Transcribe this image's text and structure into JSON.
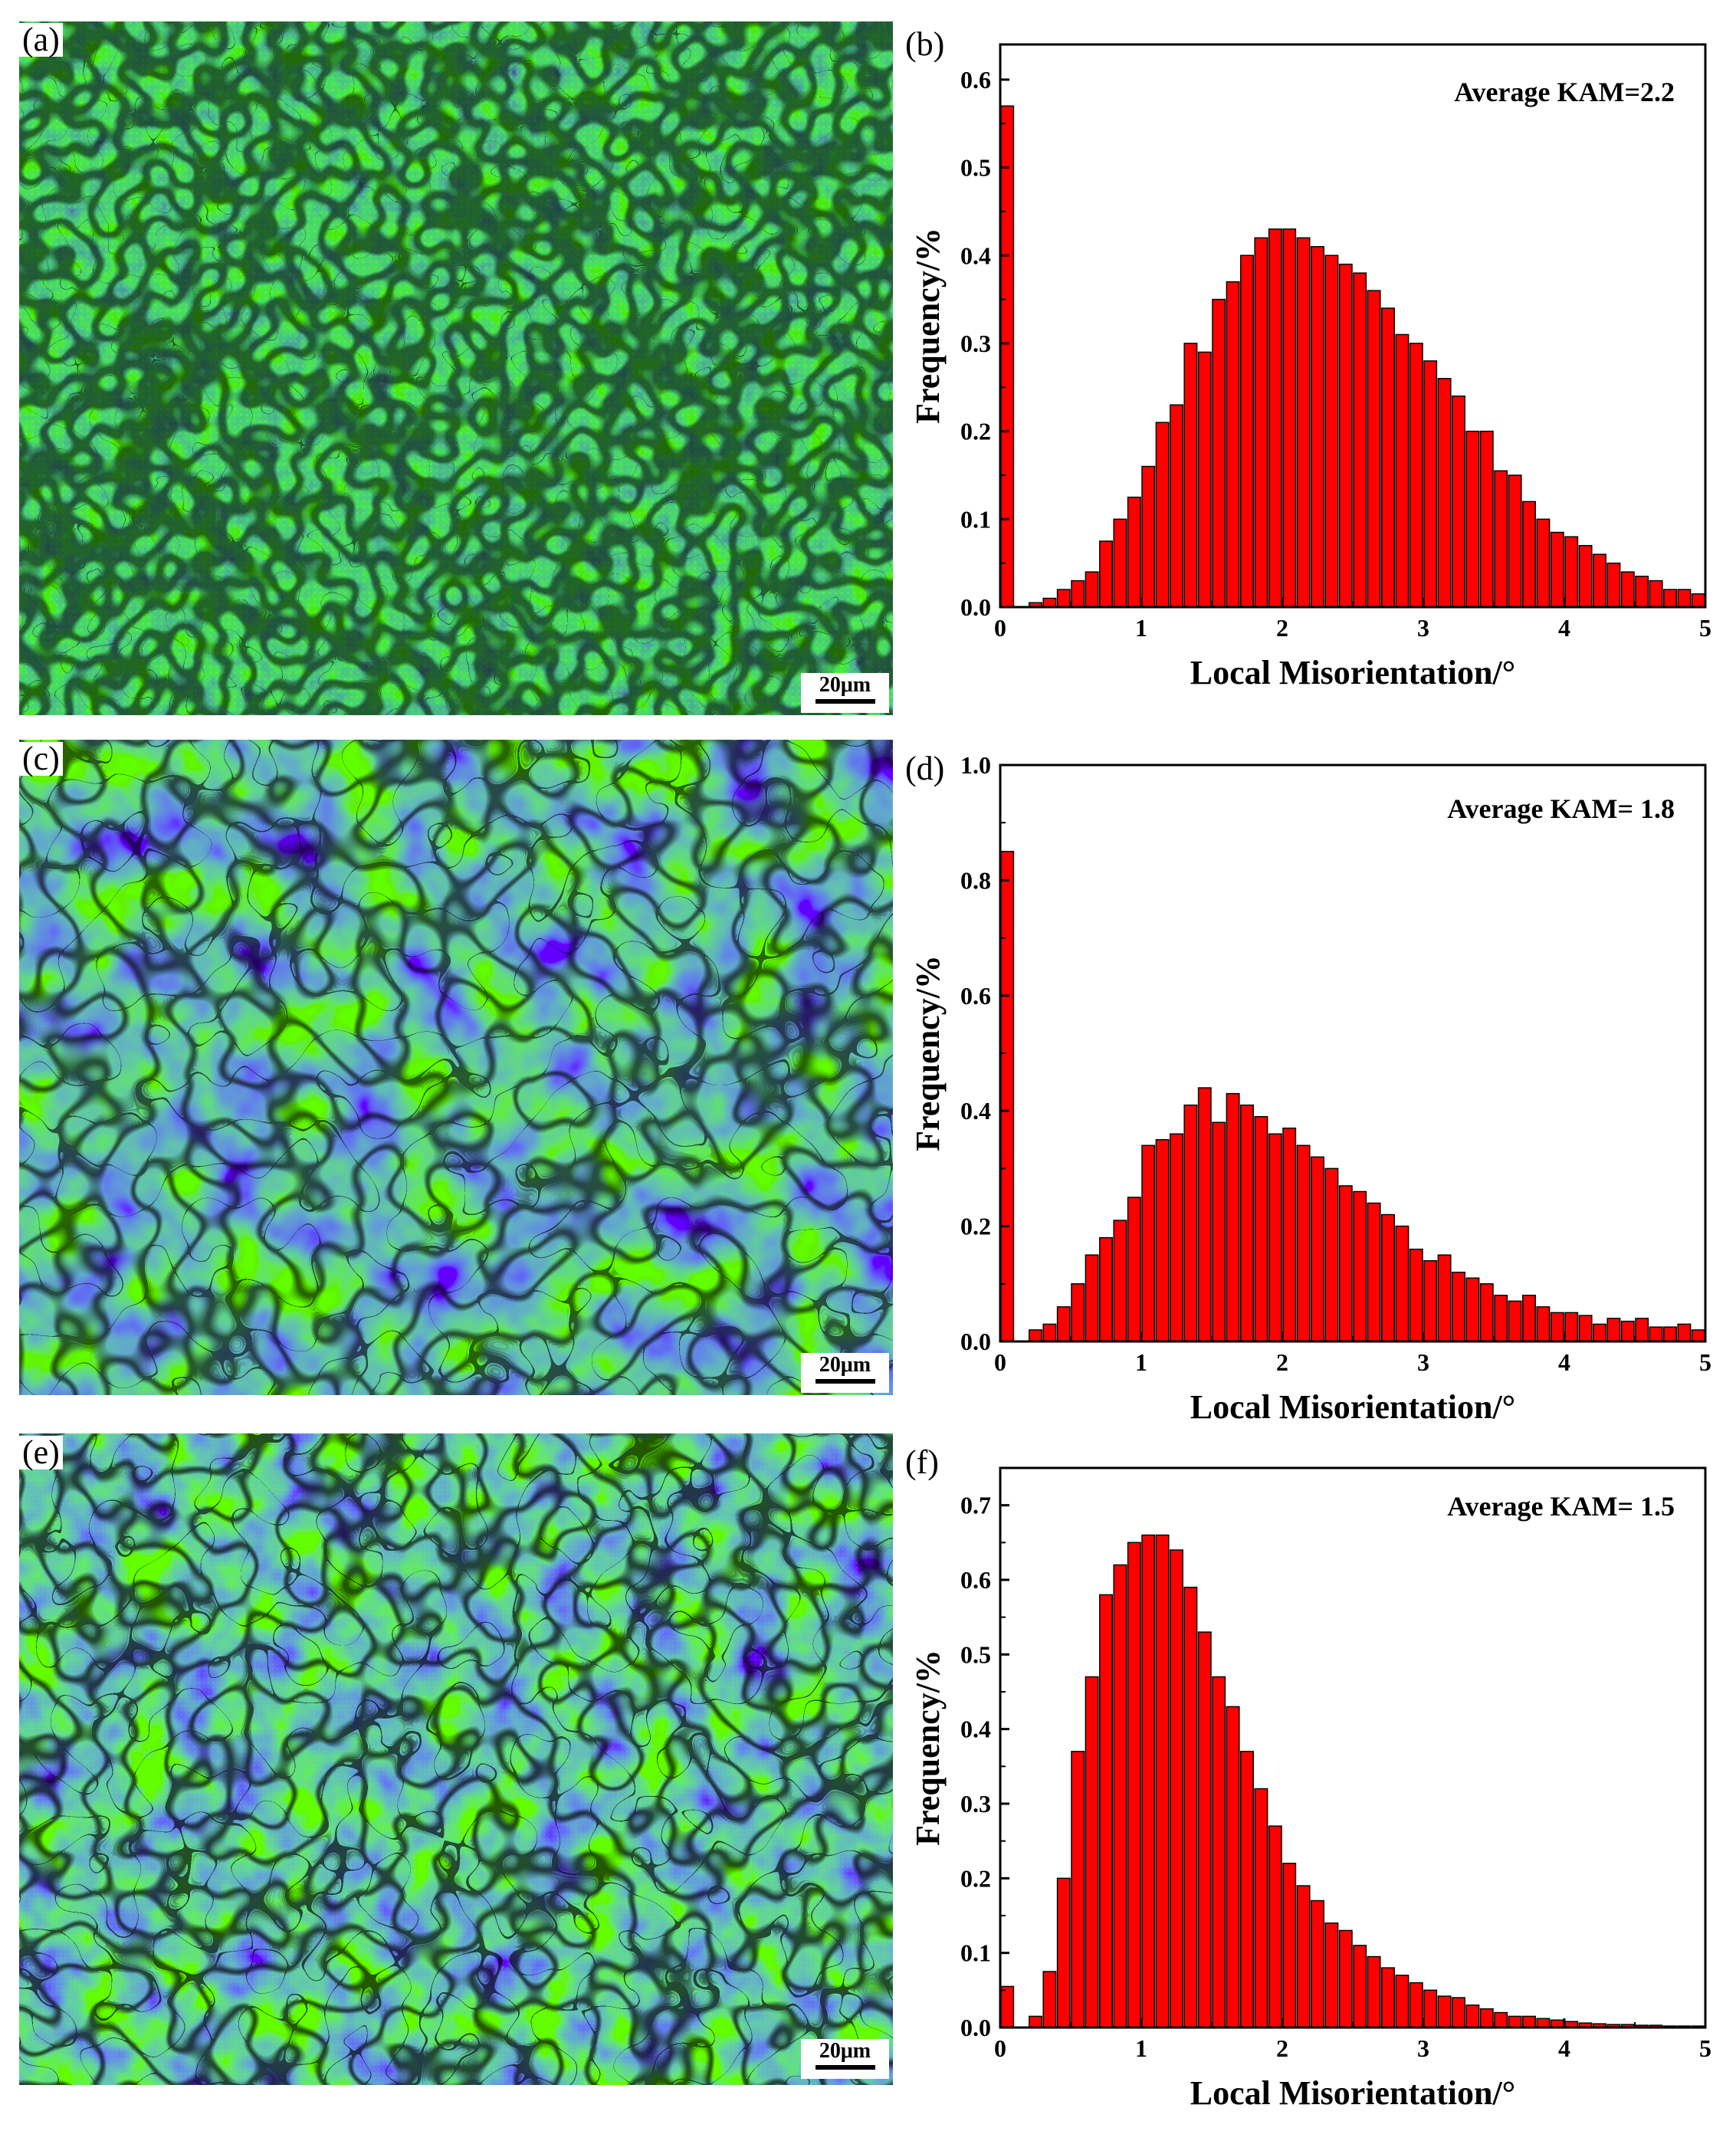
{
  "figure": {
    "panel_labels": [
      "(a)",
      "(b)",
      "(c)",
      "(d)",
      "(e)",
      "(f)"
    ],
    "scale_bar_label": "20μm",
    "colors": {
      "bar_fill": "#ff0000",
      "bar_edge": "#000000",
      "kam_low": "#1030c0",
      "kam_mid": "#30d020",
      "kam_high": "#ff2000",
      "kam_yellow": "#f0e000"
    }
  },
  "maps": [
    {
      "label": "(a)",
      "scale_bar": "20μm",
      "description_icon": "kam-map-icon"
    },
    {
      "label": "(c)",
      "scale_bar": "20μm",
      "description_icon": "kam-map-icon"
    },
    {
      "label": "(e)",
      "scale_bar": "20μm",
      "description_icon": "kam-map-icon"
    }
  ],
  "chart_data": [
    {
      "type": "bar",
      "panel": "(b)",
      "annotation": "Average KAM=2.2",
      "xlabel": "Local Misorientation/°",
      "ylabel": "Frequency/%",
      "xlim": [
        0,
        5
      ],
      "ylim": [
        0,
        0.64
      ],
      "xticks": [
        "0",
        "1",
        "2",
        "3",
        "4",
        "5"
      ],
      "yticks": [
        "0.0",
        "0.1",
        "0.2",
        "0.3",
        "0.4",
        "0.5",
        "0.6"
      ],
      "bin_width": 0.1,
      "x": [
        0.05,
        0.15,
        0.25,
        0.35,
        0.45,
        0.55,
        0.65,
        0.75,
        0.85,
        0.95,
        1.05,
        1.15,
        1.25,
        1.35,
        1.45,
        1.55,
        1.65,
        1.75,
        1.85,
        1.95,
        2.05,
        2.15,
        2.25,
        2.35,
        2.45,
        2.55,
        2.65,
        2.75,
        2.85,
        2.95,
        3.05,
        3.15,
        3.25,
        3.35,
        3.45,
        3.55,
        3.65,
        3.75,
        3.85,
        3.95,
        4.05,
        4.15,
        4.25,
        4.35,
        4.45,
        4.55,
        4.65,
        4.75,
        4.85,
        4.95
      ],
      "values": [
        0.57,
        0.0,
        0.005,
        0.01,
        0.02,
        0.03,
        0.04,
        0.075,
        0.1,
        0.125,
        0.16,
        0.21,
        0.23,
        0.3,
        0.29,
        0.35,
        0.37,
        0.4,
        0.42,
        0.43,
        0.43,
        0.42,
        0.41,
        0.4,
        0.39,
        0.38,
        0.36,
        0.34,
        0.31,
        0.3,
        0.28,
        0.26,
        0.24,
        0.2,
        0.2,
        0.155,
        0.15,
        0.12,
        0.1,
        0.085,
        0.08,
        0.07,
        0.06,
        0.05,
        0.04,
        0.035,
        0.03,
        0.02,
        0.02,
        0.015
      ]
    },
    {
      "type": "bar",
      "panel": "(d)",
      "annotation": "Average KAM= 1.8",
      "xlabel": "Local Misorientation/°",
      "ylabel": "Frequency/%",
      "xlim": [
        0,
        5
      ],
      "ylim": [
        0,
        1.0
      ],
      "xticks": [
        "0",
        "1",
        "2",
        "3",
        "4",
        "5"
      ],
      "yticks": [
        "0.0",
        "0.2",
        "0.4",
        "0.6",
        "0.8",
        "1.0"
      ],
      "bin_width": 0.1,
      "x": [
        0.05,
        0.15,
        0.25,
        0.35,
        0.45,
        0.55,
        0.65,
        0.75,
        0.85,
        0.95,
        1.05,
        1.15,
        1.25,
        1.35,
        1.45,
        1.55,
        1.65,
        1.75,
        1.85,
        1.95,
        2.05,
        2.15,
        2.25,
        2.35,
        2.45,
        2.55,
        2.65,
        2.75,
        2.85,
        2.95,
        3.05,
        3.15,
        3.25,
        3.35,
        3.45,
        3.55,
        3.65,
        3.75,
        3.85,
        3.95,
        4.05,
        4.15,
        4.25,
        4.35,
        4.45,
        4.55,
        4.65,
        4.75,
        4.85,
        4.95
      ],
      "values": [
        0.85,
        0.0,
        0.02,
        0.03,
        0.06,
        0.1,
        0.15,
        0.18,
        0.21,
        0.25,
        0.34,
        0.35,
        0.36,
        0.41,
        0.44,
        0.38,
        0.43,
        0.41,
        0.39,
        0.36,
        0.37,
        0.34,
        0.32,
        0.3,
        0.27,
        0.26,
        0.24,
        0.22,
        0.2,
        0.16,
        0.14,
        0.15,
        0.12,
        0.11,
        0.1,
        0.08,
        0.07,
        0.08,
        0.06,
        0.05,
        0.05,
        0.045,
        0.03,
        0.04,
        0.035,
        0.04,
        0.025,
        0.025,
        0.03,
        0.02
      ]
    },
    {
      "type": "bar",
      "panel": "(f)",
      "annotation": "Average KAM= 1.5",
      "xlabel": "Local Misorientation/°",
      "ylabel": "Frequency/%",
      "xlim": [
        0,
        5
      ],
      "ylim": [
        0,
        0.75
      ],
      "xticks": [
        "0",
        "1",
        "2",
        "3",
        "4",
        "5"
      ],
      "yticks": [
        "0.0",
        "0.1",
        "0.2",
        "0.3",
        "0.4",
        "0.5",
        "0.6",
        "0.7"
      ],
      "bin_width": 0.1,
      "x": [
        0.05,
        0.15,
        0.25,
        0.35,
        0.45,
        0.55,
        0.65,
        0.75,
        0.85,
        0.95,
        1.05,
        1.15,
        1.25,
        1.35,
        1.45,
        1.55,
        1.65,
        1.75,
        1.85,
        1.95,
        2.05,
        2.15,
        2.25,
        2.35,
        2.45,
        2.55,
        2.65,
        2.75,
        2.85,
        2.95,
        3.05,
        3.15,
        3.25,
        3.35,
        3.45,
        3.55,
        3.65,
        3.75,
        3.85,
        3.95,
        4.05,
        4.15,
        4.25,
        4.35,
        4.45,
        4.55,
        4.65,
        4.75,
        4.85,
        4.95
      ],
      "values": [
        0.055,
        0.0,
        0.015,
        0.075,
        0.2,
        0.37,
        0.47,
        0.58,
        0.62,
        0.65,
        0.66,
        0.66,
        0.64,
        0.59,
        0.53,
        0.47,
        0.43,
        0.37,
        0.32,
        0.27,
        0.22,
        0.19,
        0.17,
        0.14,
        0.13,
        0.11,
        0.095,
        0.08,
        0.07,
        0.06,
        0.05,
        0.042,
        0.04,
        0.03,
        0.025,
        0.02,
        0.015,
        0.015,
        0.012,
        0.01,
        0.008,
        0.006,
        0.005,
        0.004,
        0.004,
        0.003,
        0.003,
        0.002,
        0.002,
        0.002
      ]
    }
  ]
}
